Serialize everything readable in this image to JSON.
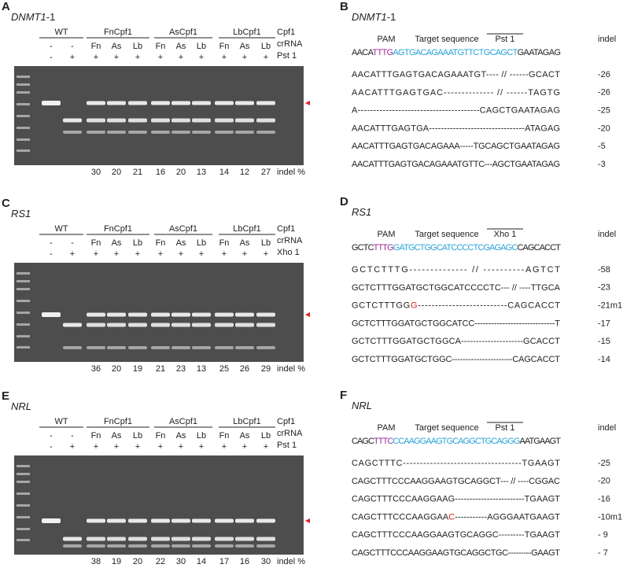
{
  "gel_panels": [
    {
      "letter": "A",
      "title": "DNMT1",
      "title_suffix": "-1",
      "groups": [
        "WT",
        "FnCpf1",
        "AsCpf1",
        "LbCpf1"
      ],
      "row_labels": [
        "Cpf1",
        "crRNA",
        "Pst 1"
      ],
      "crrna": [
        "-",
        "-",
        "Fn",
        "As",
        "Lb",
        "Fn",
        "As",
        "Lb",
        "Fn",
        "As",
        "Lb"
      ],
      "enzyme": [
        "-",
        "+",
        "+",
        "+",
        "+",
        "+",
        "+",
        "+",
        "+",
        "+",
        "+"
      ],
      "indel": [
        30,
        20,
        21,
        16,
        20,
        13,
        14,
        12,
        27
      ],
      "indel_label": "indel %"
    },
    {
      "letter": "C",
      "title": "RS1",
      "title_suffix": "",
      "groups": [
        "WT",
        "FnCpf1",
        "AsCpf1",
        "LbCpf1"
      ],
      "row_labels": [
        "Cpf1",
        "crRNA",
        "Xho 1"
      ],
      "crrna": [
        "-",
        "-",
        "Fn",
        "As",
        "Lb",
        "Fn",
        "As",
        "Lb",
        "Fn",
        "As",
        "Lb"
      ],
      "enzyme": [
        "-",
        "+",
        "+",
        "+",
        "+",
        "+",
        "+",
        "+",
        "+",
        "+",
        "+"
      ],
      "indel": [
        36,
        20,
        19,
        21,
        23,
        13,
        25,
        26,
        29
      ],
      "indel_label": "indel %"
    },
    {
      "letter": "E",
      "title": "NRL",
      "title_suffix": "",
      "groups": [
        "WT",
        "FnCpf1",
        "AsCpf1",
        "LbCpf1"
      ],
      "row_labels": [
        "Cpf1",
        "crRNA",
        "Pst 1"
      ],
      "crrna": [
        "-",
        "-",
        "Fn",
        "As",
        "Lb",
        "Fn",
        "As",
        "Lb",
        "Fn",
        "As",
        "Lb"
      ],
      "enzyme": [
        "-",
        "+",
        "+",
        "+",
        "+",
        "+",
        "+",
        "+",
        "+",
        "+",
        "+"
      ],
      "indel": [
        38,
        19,
        20,
        22,
        30,
        14,
        17,
        16,
        30
      ],
      "indel_label": "indel %"
    }
  ],
  "seq_panels": [
    {
      "letter": "B",
      "title": "DNMT1",
      "title_suffix": "-1",
      "pam_label": "PAM",
      "target_label": "Target sequence",
      "enzyme_label": "Pst 1",
      "indel_header": "indel",
      "reference": [
        {
          "text": "AACA",
          "color": "#222222"
        },
        {
          "text": "TTTG",
          "color": "#9b2a9b"
        },
        {
          "text": "AGTGACAGAAATGTTCTGCAGCT",
          "color": "#2aa3d8"
        },
        {
          "text": "GAATAGAG",
          "color": "#222222"
        }
      ],
      "rows": [
        {
          "segments": [
            {
              "text": "AACATTTGAGTGACAGAAATGT---- // ------GCACT",
              "color": "#222222"
            }
          ],
          "indel": "-26"
        },
        {
          "segments": [
            {
              "text": "AACATTTGAGTGAC-------------- // ------TAGTG",
              "color": "#222222"
            }
          ],
          "indel": "-26"
        },
        {
          "segments": [
            {
              "text": "A---------------------------------------CAGCTGAATAGAG",
              "color": "#222222"
            }
          ],
          "indel": "-25"
        },
        {
          "segments": [
            {
              "text": "AACATTTGAGTGA--------------------------------ATAGAG",
              "color": "#222222"
            }
          ],
          "indel": "-20"
        },
        {
          "segments": [
            {
              "text": "AACATTTGAGTGACAGAAA-----TGCAGCTGAATAGAG",
              "color": "#222222"
            }
          ],
          "indel": "-5"
        },
        {
          "segments": [
            {
              "text": "AACATTTGAGTGACAGAAATGTTC---AGCTGAATAGAG",
              "color": "#222222"
            }
          ],
          "indel": "-3"
        }
      ]
    },
    {
      "letter": "D",
      "title": "RS1",
      "title_suffix": "",
      "pam_label": "PAM",
      "target_label": "Target sequence",
      "enzyme_label": "Xho 1",
      "indel_header": "indel",
      "reference": [
        {
          "text": "GCTC",
          "color": "#222222"
        },
        {
          "text": "TTTG",
          "color": "#9b2a9b"
        },
        {
          "text": "GATGCTGGCATCCCCTCGAGAGC",
          "color": "#2aa3d8"
        },
        {
          "text": "CAGCACCT",
          "color": "#222222"
        }
      ],
      "rows": [
        {
          "segments": [
            {
              "text": "GCTCTTTG-------------- // ----------AGTCT",
              "color": "#222222"
            }
          ],
          "indel": "-58"
        },
        {
          "segments": [
            {
              "text": "GCTCTTTGGATGCTGGCATCCCCTC--- // ----TTGCA",
              "color": "#222222"
            }
          ],
          "indel": "-23"
        },
        {
          "segments": [
            {
              "text": "GCTCTTTGG",
              "color": "#222222"
            },
            {
              "text": "G",
              "color": "#e02020"
            },
            {
              "text": "--------------------------CAGCACCT",
              "color": "#222222"
            }
          ],
          "indel": "-21m1"
        },
        {
          "segments": [
            {
              "text": "GCTCTTTGGATGCTGGCATCC-----------------------------T",
              "color": "#222222"
            }
          ],
          "indel": "-17"
        },
        {
          "segments": [
            {
              "text": "GCTCTTTGGATGCTGGCA---------------------GCACCT",
              "color": "#222222"
            }
          ],
          "indel": "-15"
        },
        {
          "segments": [
            {
              "text": "GCTCTTTGGATGCTGGC----------------------CAGCACCT",
              "color": "#222222"
            }
          ],
          "indel": "-14"
        }
      ]
    },
    {
      "letter": "F",
      "title": "NRL",
      "title_suffix": "",
      "pam_label": "PAM",
      "target_label": "Target sequence",
      "enzyme_label": "Pst 1",
      "indel_header": "indel",
      "reference": [
        {
          "text": "CAGC",
          "color": "#222222"
        },
        {
          "text": "TTTC",
          "color": "#9b2a9b"
        },
        {
          "text": "CCAAGGAAGTGCAGGCTGCAGGG",
          "color": "#2aa3d8"
        },
        {
          "text": "AATGAAGT",
          "color": "#222222"
        }
      ],
      "rows": [
        {
          "segments": [
            {
              "text": "CAGCTTTC-----------------------------------TGAAGT",
              "color": "#222222"
            }
          ],
          "indel": "-25"
        },
        {
          "segments": [
            {
              "text": "CAGCTTTCCCAAGGAAGTGCAGGCT--- // ----CGGAC",
              "color": "#222222"
            }
          ],
          "indel": "-20"
        },
        {
          "segments": [
            {
              "text": "CAGCTTTCCCAAGGAAG------------------------TGAAGT",
              "color": "#222222"
            }
          ],
          "indel": "-16"
        },
        {
          "segments": [
            {
              "text": "CAGCTTTCCCAAGGAA",
              "color": "#222222"
            },
            {
              "text": "C",
              "color": "#e02020"
            },
            {
              "text": "-----------AGGGAATGAAGT",
              "color": "#222222"
            }
          ],
          "indel": "-10m1"
        },
        {
          "segments": [
            {
              "text": "CAGCTTTCCCAAGGAAGTGCAGGC---------TGAAGT",
              "color": "#222222"
            }
          ],
          "indel": "- 9"
        },
        {
          "segments": [
            {
              "text": "CAGCTTTCCCAAGGAAGTGCAGGCTGC---------GAAGT",
              "color": "#222222"
            }
          ],
          "indel": "- 7"
        }
      ]
    }
  ]
}
